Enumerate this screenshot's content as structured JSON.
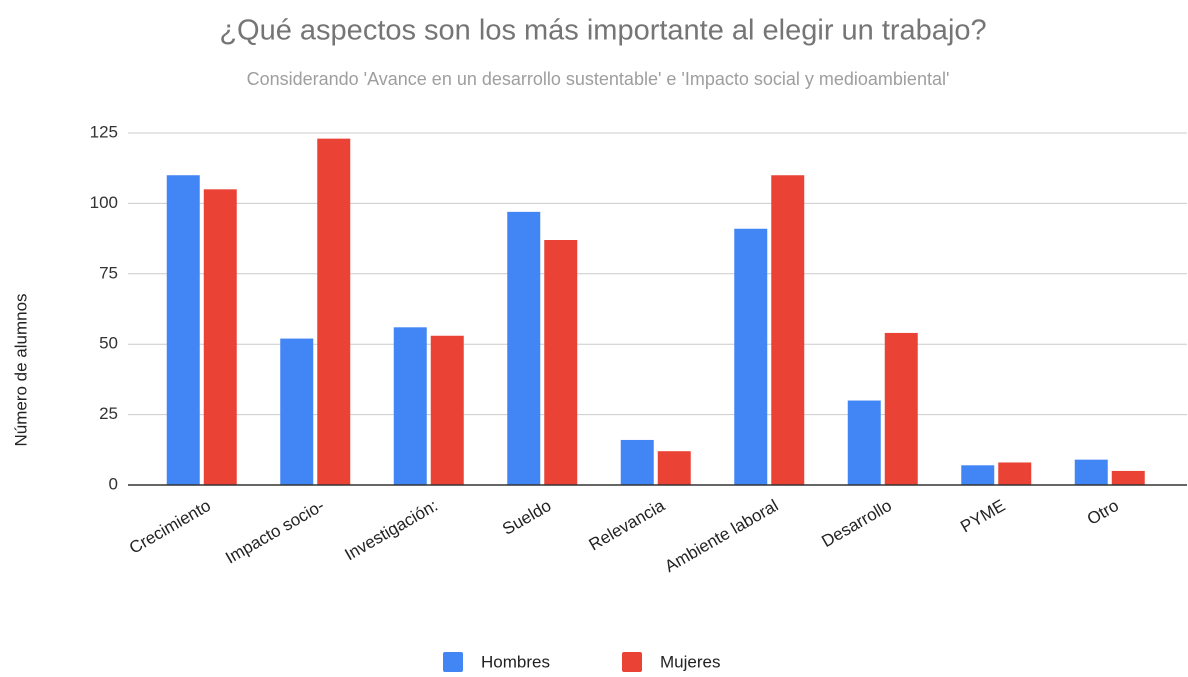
{
  "chart_data": {
    "type": "bar",
    "title": "¿Qué aspectos son los más importante al elegir un trabajo?",
    "subtitle": "Considerando 'Avance en un desarrollo sustentable' e 'Impacto social y medioambiental'",
    "y_label": "Número de alumnos",
    "categories": [
      "Crecimiento",
      "Impacto socio-",
      "Investigación:",
      "Sueldo",
      "Relevancia",
      "Ambiente laboral",
      "Desarrollo",
      "PYME",
      "Otro"
    ],
    "series": [
      {
        "name": "Hombres",
        "color": "#4285f4",
        "values": [
          110,
          52,
          56,
          97,
          16,
          91,
          30,
          7,
          9
        ]
      },
      {
        "name": "Mujeres",
        "color": "#ea4335",
        "values": [
          105,
          123,
          53,
          87,
          12,
          110,
          54,
          8,
          5
        ]
      }
    ],
    "ylim": [
      0,
      125
    ],
    "yticks": [
      0,
      25,
      50,
      75,
      100,
      125
    ],
    "grid": true,
    "legend": "bottom"
  }
}
